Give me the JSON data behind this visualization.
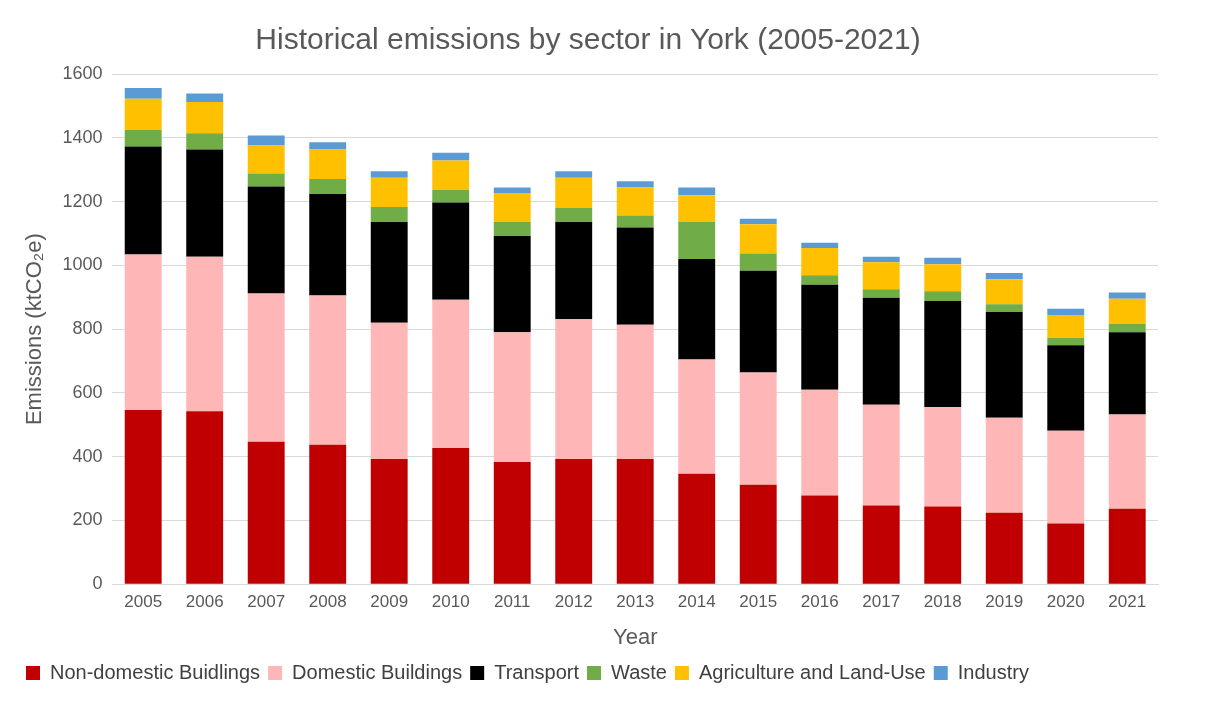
{
  "chart_data": {
    "type": "bar",
    "title": "Historical emissions by sector in York (2005-2021)",
    "xlabel": "Year",
    "ylabel": "Emissions (ktCO₂e)",
    "categories": [
      "2005",
      "2006",
      "2007",
      "2008",
      "2009",
      "2010",
      "2011",
      "2012",
      "2013",
      "2014",
      "2015",
      "2016",
      "2017",
      "2018",
      "2019",
      "2020",
      "2021"
    ],
    "stacked": true,
    "ylim": [
      0,
      1600
    ],
    "yticks": [
      0,
      200,
      400,
      600,
      800,
      1000,
      1200,
      1400,
      1600
    ],
    "grid": "y",
    "legend": "bottom",
    "series": [
      {
        "name": "Non-domestic Buidlings",
        "color": "#c00000",
        "values": [
          546,
          542,
          447,
          437,
          393,
          427,
          383,
          393,
          393,
          346,
          312,
          278,
          247,
          244,
          224,
          190,
          237
        ]
      },
      {
        "name": "Domestic Buildings",
        "color": "#ffb6b6",
        "values": [
          488,
          485,
          465,
          468,
          427,
          465,
          407,
          438,
          421,
          359,
          352,
          332,
          316,
          312,
          298,
          291,
          295
        ]
      },
      {
        "name": "Transport",
        "color": "#000000",
        "values": [
          339,
          336,
          335,
          319,
          316,
          305,
          302,
          305,
          305,
          315,
          319,
          329,
          335,
          332,
          332,
          268,
          258
        ]
      },
      {
        "name": "Waste",
        "color": "#70ad47",
        "values": [
          51,
          51,
          41,
          47,
          47,
          40,
          44,
          44,
          37,
          116,
          54,
          30,
          27,
          31,
          24,
          24,
          27
        ]
      },
      {
        "name": "Agriculture and Land-Use",
        "color": "#ffc000",
        "values": [
          98,
          98,
          88,
          92,
          92,
          92,
          91,
          95,
          88,
          84,
          92,
          85,
          85,
          84,
          78,
          71,
          78
        ]
      },
      {
        "name": "Industry",
        "color": "#5b9bd5",
        "values": [
          34,
          27,
          31,
          23,
          20,
          24,
          17,
          20,
          20,
          24,
          17,
          17,
          17,
          21,
          20,
          20,
          20
        ]
      }
    ]
  }
}
